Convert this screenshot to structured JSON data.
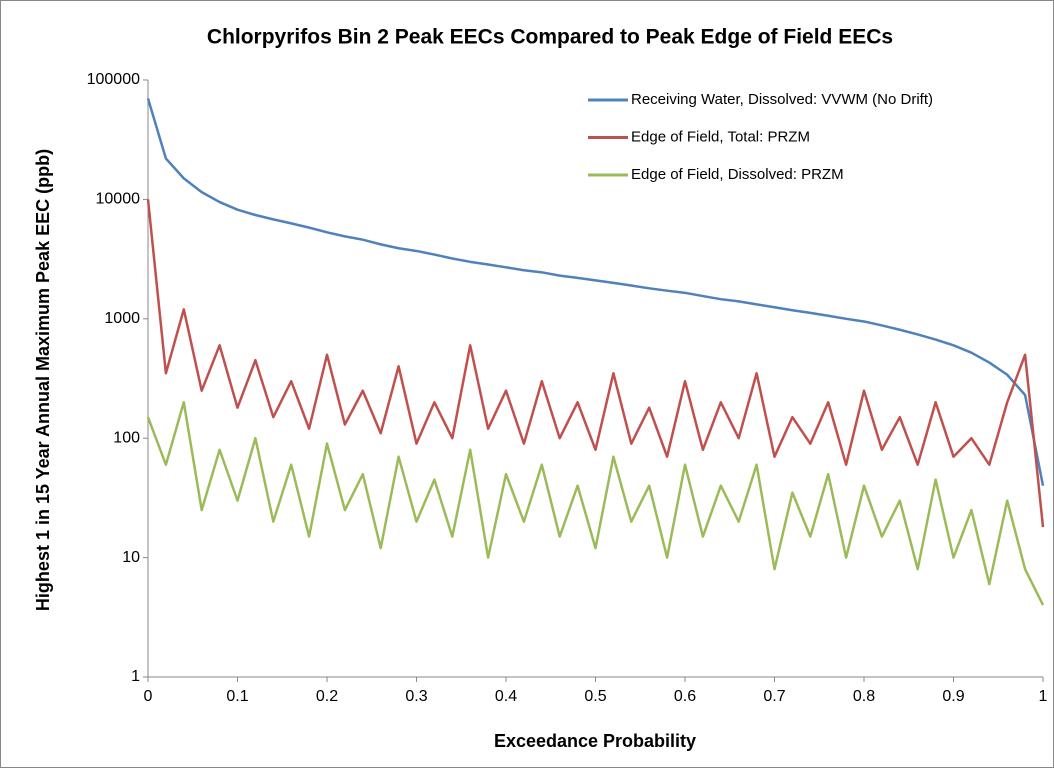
{
  "chart_data": {
    "type": "line",
    "title": "Chlorpyrifos Bin 2 Peak EECs Compared to Peak Edge of Field EECs",
    "x_label": "Exceedance Probability",
    "y_label": "Highest 1 in 15 Year Annual Maximum Peak EEC (ppb)",
    "log_y": true,
    "legend": "top-right",
    "xlim": [
      0,
      1
    ],
    "xticks": [
      0,
      0.1,
      0.2,
      0.3,
      0.4,
      0.5,
      0.6,
      0.7,
      0.8,
      0.9,
      1
    ],
    "ylim": [
      1,
      100000
    ],
    "yticks": [
      1,
      10,
      100,
      1000,
      10000,
      100000
    ],
    "x": [
      0,
      0.02,
      0.04,
      0.06,
      0.08,
      0.1,
      0.12,
      0.14,
      0.16,
      0.18,
      0.2,
      0.22,
      0.24,
      0.26,
      0.28,
      0.3,
      0.32,
      0.34,
      0.36,
      0.38,
      0.4,
      0.42,
      0.44,
      0.46,
      0.48,
      0.5,
      0.52,
      0.54,
      0.56,
      0.58,
      0.6,
      0.62,
      0.64,
      0.66,
      0.68,
      0.7,
      0.72,
      0.74,
      0.76,
      0.78,
      0.8,
      0.82,
      0.84,
      0.86,
      0.88,
      0.9,
      0.92,
      0.94,
      0.96,
      0.98,
      1
    ],
    "series": [
      {
        "name": "Receiving Water, Dissolved: VVWM (No Drift)",
        "color": "#4f81bd",
        "values": [
          70000,
          22000,
          15000,
          11500,
          9500,
          8200,
          7400,
          6800,
          6300,
          5800,
          5300,
          4900,
          4600,
          4200,
          3900,
          3700,
          3450,
          3200,
          3000,
          2850,
          2700,
          2550,
          2450,
          2300,
          2200,
          2100,
          2000,
          1900,
          1800,
          1720,
          1650,
          1550,
          1460,
          1400,
          1320,
          1250,
          1180,
          1120,
          1060,
          1000,
          950,
          880,
          810,
          740,
          670,
          600,
          520,
          430,
          340,
          230,
          40
        ]
      },
      {
        "name": "Edge of Field, Total: PRZM",
        "color": "#c0504d",
        "values": [
          10000,
          350,
          1200,
          250,
          600,
          180,
          450,
          150,
          300,
          120,
          500,
          130,
          250,
          110,
          400,
          90,
          200,
          100,
          600,
          120,
          250,
          90,
          300,
          100,
          200,
          80,
          350,
          90,
          180,
          70,
          300,
          80,
          200,
          100,
          350,
          70,
          150,
          90,
          200,
          60,
          250,
          80,
          150,
          60,
          200,
          70,
          100,
          60,
          200,
          500,
          18
        ]
      },
      {
        "name": "Edge of Field, Dissolved: PRZM",
        "color": "#9bbb59",
        "values": [
          150,
          60,
          200,
          25,
          80,
          30,
          100,
          20,
          60,
          15,
          90,
          25,
          50,
          12,
          70,
          20,
          45,
          15,
          80,
          10,
          50,
          20,
          60,
          15,
          40,
          12,
          70,
          20,
          40,
          10,
          60,
          15,
          40,
          20,
          60,
          8,
          35,
          15,
          50,
          10,
          40,
          15,
          30,
          8,
          45,
          10,
          25,
          6,
          30,
          8,
          4
        ]
      }
    ]
  }
}
